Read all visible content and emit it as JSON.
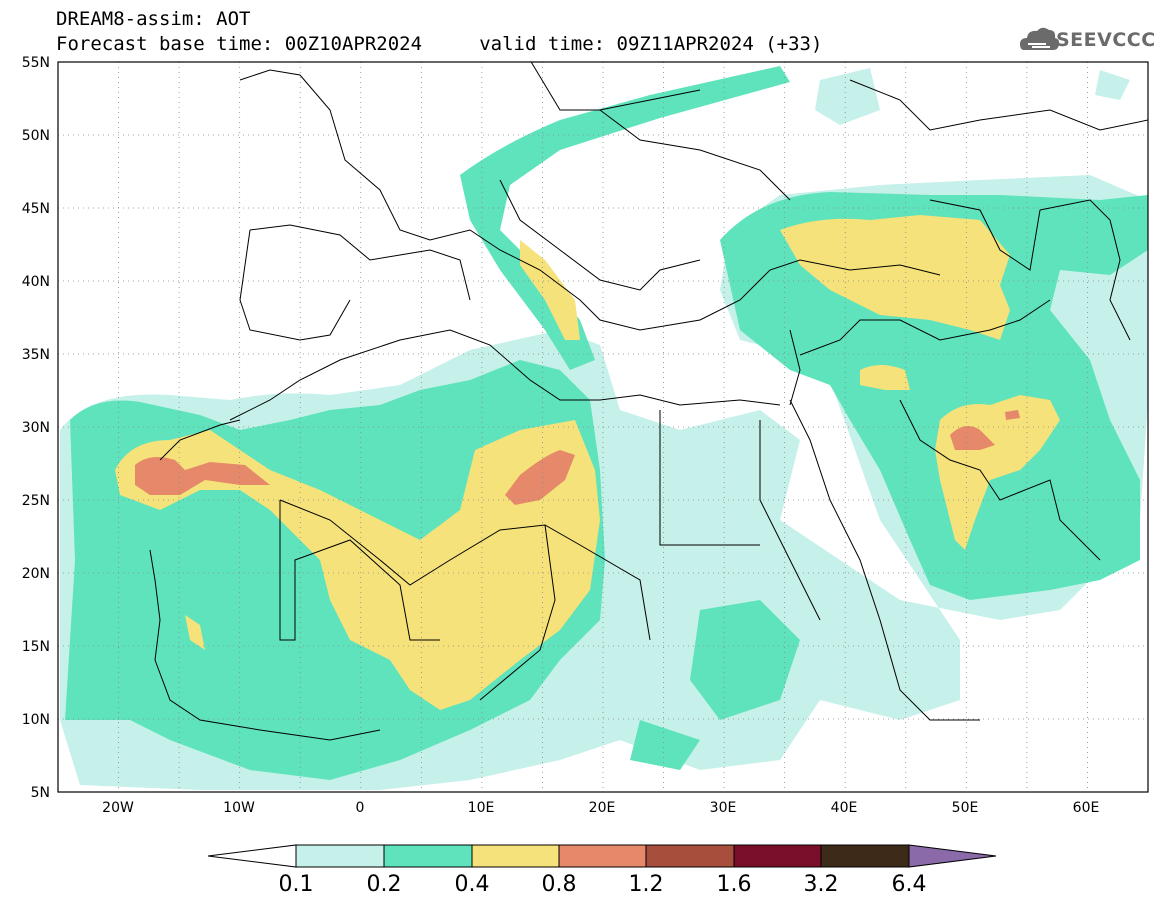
{
  "header": {
    "title_line1": "DREAM8-assim: AOT",
    "title_line2": "Forecast base time: 00Z10APR2024     valid time: 09Z11APR2024 (+33)"
  },
  "logo": {
    "text": "SEEVCCC",
    "icon": "cloud-icon"
  },
  "map": {
    "lat_ticks": [
      "55N",
      "50N",
      "45N",
      "40N",
      "35N",
      "30N",
      "25N",
      "20N",
      "15N",
      "10N",
      "5N"
    ],
    "lon_ticks": [
      "20W",
      "10W",
      "0",
      "10E",
      "20E",
      "30E",
      "40E",
      "50E",
      "60E"
    ],
    "lat_range": [
      5,
      55
    ],
    "lon_range": [
      -25,
      65
    ],
    "grid": true
  },
  "colorbar": {
    "labels": [
      "0.1",
      "0.2",
      "0.4",
      "0.8",
      "1.2",
      "1.6",
      "3.2",
      "6.4"
    ],
    "colors": [
      "#c6f0ea",
      "#5ee3bd",
      "#f6e27a",
      "#e6896a",
      "#a84e3c",
      "#7a0f2a",
      "#3d2a18",
      "#8a6aa8"
    ],
    "under_color": "#ffffff"
  }
}
